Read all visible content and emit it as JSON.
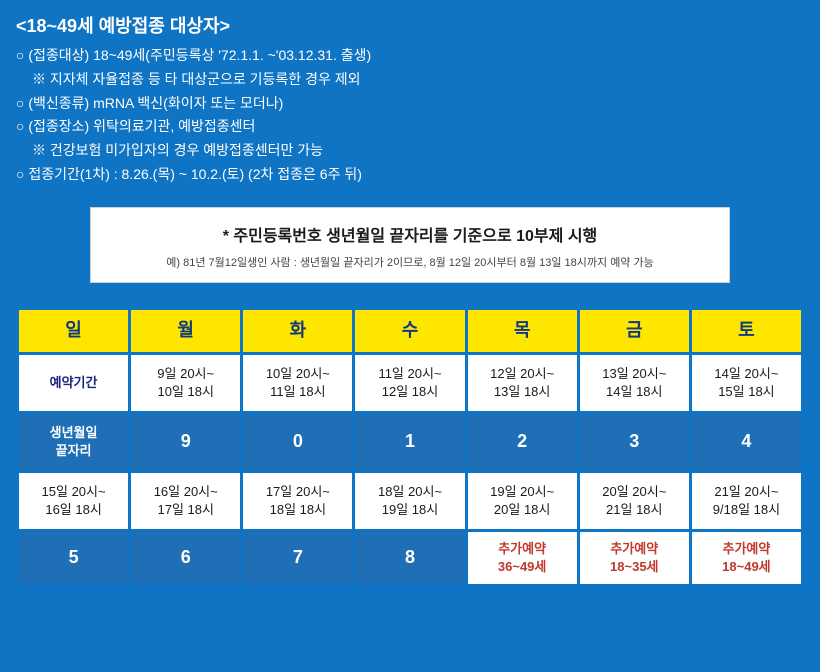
{
  "header": {
    "title": "<18~49세 예방접종 대상자>"
  },
  "bullets": {
    "b1": "○ (접종대상) 18~49세(주민등록상 '72.1.1. ~'03.12.31. 출생)",
    "b1sub": "※ 지자체 자율접종 등 타 대상군으로 기등록한 경우 제외",
    "b2": "○ (백신종류) mRNA 백신(화이자 또는 모더나)",
    "b3": "○ (접종장소) 위탁의료기관, 예방접종센터",
    "b3sub": "※ 건강보험 미가입자의 경우 예방접종센터만 가능",
    "b4": "○ 접종기간(1차) : 8.26.(목) ~ 10.2.(토) (2차 접종은 6주 뒤)"
  },
  "infobox": {
    "title": "* 주민등록번호 생년월일 끝자리를 기준으로 10부제 시행",
    "sub": "예) 81년 7월12일생인 사람 : 생년월일 끝자리가 2이므로, 8월 12일 20시부터 8월 13일 18시까지 예약 가능"
  },
  "table": {
    "days": [
      "일",
      "월",
      "화",
      "수",
      "목",
      "금",
      "토"
    ],
    "row1": {
      "label": "예약기간",
      "cells": [
        {
          "l1": "9일 20시~",
          "l2": "10일 18시"
        },
        {
          "l1": "10일 20시~",
          "l2": "11일 18시"
        },
        {
          "l1": "11일 20시~",
          "l2": "12일 18시"
        },
        {
          "l1": "12일 20시~",
          "l2": "13일 18시"
        },
        {
          "l1": "13일 20시~",
          "l2": "14일 18시"
        },
        {
          "l1": "14일 20시~",
          "l2": "15일 18시"
        }
      ]
    },
    "row2": {
      "label": "생년월일\n끝자리",
      "cells": [
        "9",
        "0",
        "1",
        "2",
        "3",
        "4"
      ]
    },
    "row3": {
      "cells": [
        {
          "l1": "15일 20시~",
          "l2": "16일 18시"
        },
        {
          "l1": "16일 20시~",
          "l2": "17일 18시"
        },
        {
          "l1": "17일 20시~",
          "l2": "18일 18시"
        },
        {
          "l1": "18일 20시~",
          "l2": "19일 18시"
        },
        {
          "l1": "19일 20시~",
          "l2": "20일 18시"
        },
        {
          "l1": "20일 20시~",
          "l2": "21일 18시"
        },
        {
          "l1": "21일 20시~",
          "l2": "9/18일 18시"
        }
      ]
    },
    "row4": {
      "cells": [
        "5",
        "6",
        "7",
        "8"
      ],
      "extras": [
        {
          "l1": "추가예약",
          "l2": "36~49세"
        },
        {
          "l1": "추가예약",
          "l2": "18~35세"
        },
        {
          "l1": "추가예약",
          "l2": "18~49세"
        }
      ]
    }
  },
  "colors": {
    "page_bg": "#0f74c4",
    "header_bg": "#ffe600",
    "header_text": "#0f3a80",
    "cell_white_bg": "#ffffff",
    "cell_blue_bg": "#1e6fb6",
    "red_text": "#c0392b"
  }
}
